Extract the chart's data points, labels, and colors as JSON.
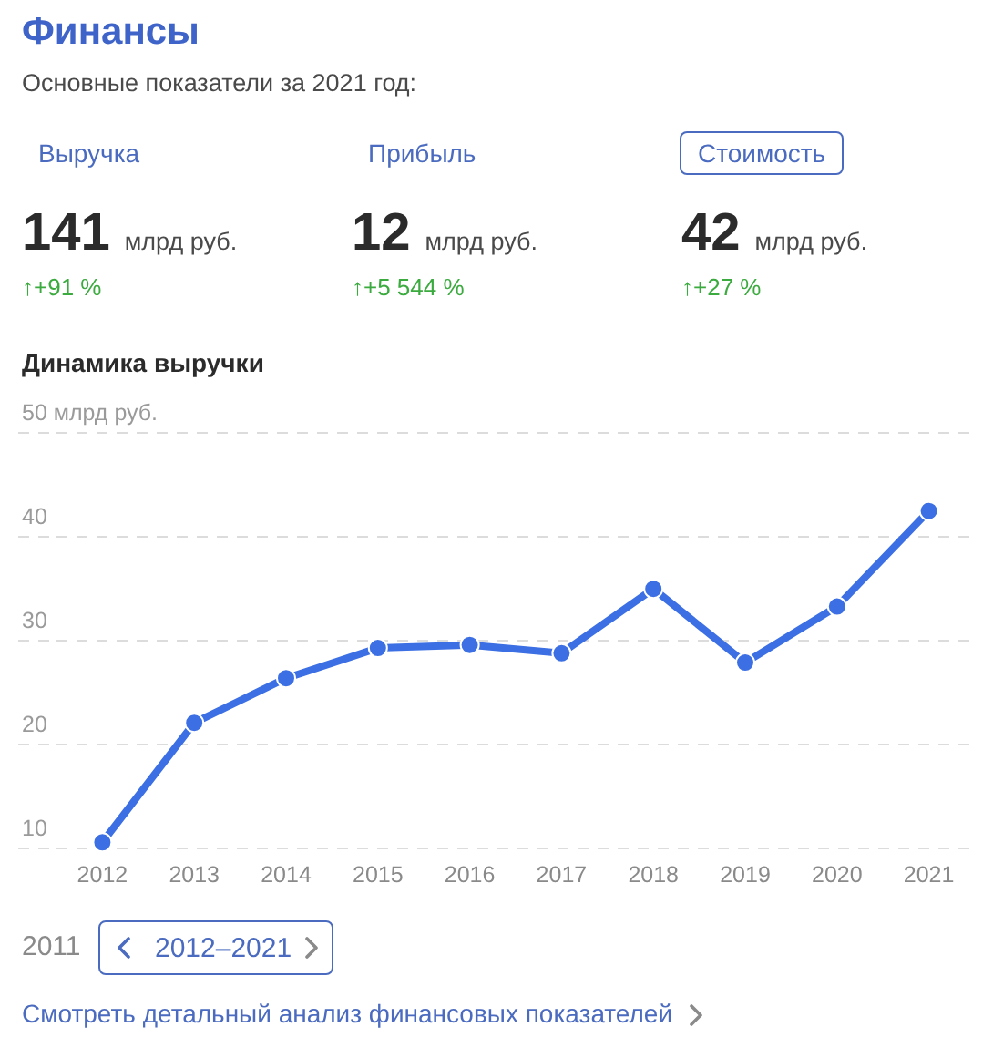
{
  "chart_data": [
    {
      "type": "other",
      "title": "Финансы",
      "subtitle": "Основные показатели за 2021 год:",
      "annotations": [
        "Выручка",
        "141",
        "млрд руб.",
        "↑+91 %",
        "Прибыль",
        "12",
        "млрд руб.",
        "↑+5 544 %",
        "Стоимость",
        "42",
        "млрд руб.",
        "↑+27 %"
      ]
    },
    {
      "type": "line",
      "title": "Динамика выручки",
      "categories": [
        "2012",
        "2013",
        "2014",
        "2015",
        "2016",
        "2017",
        "2018",
        "2019",
        "2020",
        "2021"
      ],
      "values": [
        10.5,
        22.0,
        26.3,
        29.2,
        29.5,
        28.7,
        34.9,
        27.8,
        33.2,
        42.4
      ],
      "color": "#3b6fe3",
      "ylim": [
        10,
        50
      ],
      "yticks": [
        10,
        20,
        30,
        40,
        {
          "value": 50,
          "label": "50 млрд руб."
        }
      ],
      "grid": "y",
      "marker": "circle",
      "line_style": "solid",
      "annotations": [
        "2011",
        "2012–2021",
        "Смотреть детальный анализ финансовых показателей"
      ]
    }
  ]
}
